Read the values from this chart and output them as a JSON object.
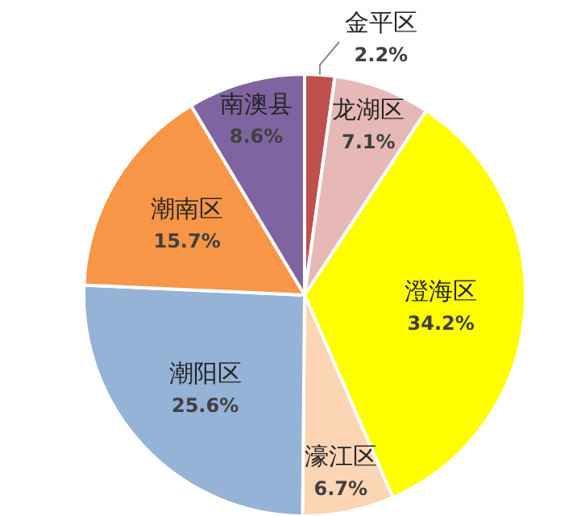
{
  "chart_data": {
    "type": "pie",
    "categories": [
      "金平区",
      "龙湖区",
      "澄海区",
      "濠江区",
      "潮阳区",
      "潮南区",
      "南澳县"
    ],
    "values": [
      2.2,
      7.1,
      34.2,
      6.7,
      25.6,
      15.7,
      8.6
    ],
    "colors": [
      "#c0504d",
      "#e6b9b8",
      "#ffff00",
      "#fcd5b5",
      "#95b3d7",
      "#f79646",
      "#8064a2"
    ],
    "value_labels": [
      "2.2%",
      "7.1%",
      "34.2%",
      "6.7%",
      "25.6%",
      "15.7%",
      "8.6%"
    ]
  }
}
